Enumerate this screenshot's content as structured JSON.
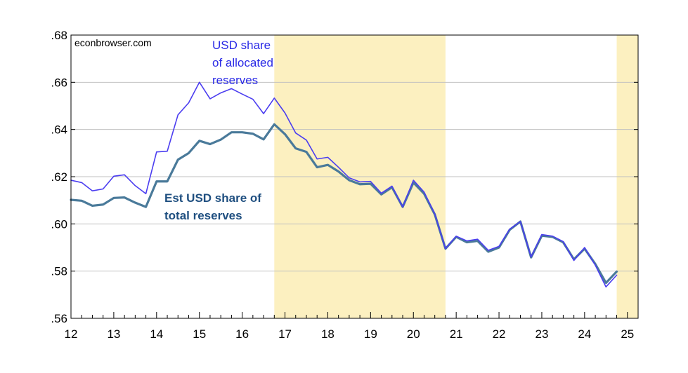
{
  "watermark": "econbrowser.com",
  "chart_data": {
    "type": "line",
    "title": "",
    "xlabel": "",
    "ylabel": "",
    "xlim": [
      2012.0,
      2025.25
    ],
    "ylim": [
      0.56,
      0.68
    ],
    "y_ticks": [
      0.56,
      0.58,
      0.6,
      0.62,
      0.64,
      0.66,
      0.68
    ],
    "y_tick_labels": [
      ".56",
      ".58",
      ".60",
      ".62",
      ".64",
      ".66",
      ".68"
    ],
    "x_ticks": [
      2012,
      2013,
      2014,
      2015,
      2016,
      2017,
      2018,
      2019,
      2020,
      2021,
      2022,
      2023,
      2024,
      2025
    ],
    "x_tick_labels": [
      "12",
      "13",
      "14",
      "15",
      "16",
      "17",
      "18",
      "19",
      "20",
      "21",
      "22",
      "23",
      "24",
      "25"
    ],
    "grid": "horizontal",
    "legend": "none",
    "shaded_periods": [
      {
        "start": 2016.75,
        "end": 2020.75,
        "color": "#fcf0c0"
      },
      {
        "start": 2024.75,
        "end": 2025.25,
        "color": "#fcf0c0"
      }
    ],
    "annotations": [
      {
        "lines": [
          "USD share",
          "of allocated",
          "reserves"
        ],
        "series": "allocated"
      },
      {
        "lines": [
          "Est USD share of",
          "total reserves"
        ],
        "series": "total"
      }
    ],
    "x": [
      2012.0,
      2012.25,
      2012.5,
      2012.75,
      2013.0,
      2013.25,
      2013.5,
      2013.75,
      2014.0,
      2014.25,
      2014.5,
      2014.75,
      2015.0,
      2015.25,
      2015.5,
      2015.75,
      2016.0,
      2016.25,
      2016.5,
      2016.75,
      2017.0,
      2017.25,
      2017.5,
      2017.75,
      2018.0,
      2018.25,
      2018.5,
      2018.75,
      2019.0,
      2019.25,
      2019.5,
      2019.75,
      2020.0,
      2020.25,
      2020.5,
      2020.75,
      2021.0,
      2021.25,
      2021.5,
      2021.75,
      2022.0,
      2022.25,
      2022.5,
      2022.75,
      2023.0,
      2023.25,
      2023.5,
      2023.75,
      2024.0,
      2024.25,
      2024.5,
      2024.75
    ],
    "series": [
      {
        "key": "allocated",
        "color": "#4b3df0",
        "width": 1.6,
        "values": [
          0.6185,
          0.6175,
          0.614,
          0.6148,
          0.6202,
          0.6208,
          0.6162,
          0.6128,
          0.6305,
          0.6308,
          0.6462,
          0.6513,
          0.66,
          0.653,
          0.6555,
          0.6573,
          0.655,
          0.6528,
          0.6467,
          0.6533,
          0.647,
          0.6385,
          0.6355,
          0.6275,
          0.6282,
          0.624,
          0.6195,
          0.6178,
          0.618,
          0.613,
          0.616,
          0.6072,
          0.6185,
          0.6135,
          0.6042,
          0.5895,
          0.5948,
          0.5928,
          0.5935,
          0.5888,
          0.5905,
          0.5978,
          0.601,
          0.586,
          0.5955,
          0.5948,
          0.5925,
          0.5845,
          0.59,
          0.5825,
          0.5733,
          0.5783
        ]
      },
      {
        "key": "total",
        "color": "#4a7a9a",
        "width": 3.2,
        "values": [
          0.6102,
          0.6098,
          0.6077,
          0.6082,
          0.611,
          0.6112,
          0.609,
          0.6072,
          0.618,
          0.618,
          0.6272,
          0.63,
          0.6352,
          0.6338,
          0.6357,
          0.6388,
          0.6388,
          0.6382,
          0.6358,
          0.6422,
          0.638,
          0.632,
          0.6305,
          0.624,
          0.625,
          0.6222,
          0.6185,
          0.6168,
          0.617,
          0.6125,
          0.6155,
          0.6072,
          0.6175,
          0.6128,
          0.604,
          0.5895,
          0.5945,
          0.5922,
          0.5928,
          0.5882,
          0.59,
          0.5975,
          0.601,
          0.5858,
          0.595,
          0.5945,
          0.5922,
          0.585,
          0.5895,
          0.583,
          0.575,
          0.5798
        ]
      }
    ]
  }
}
